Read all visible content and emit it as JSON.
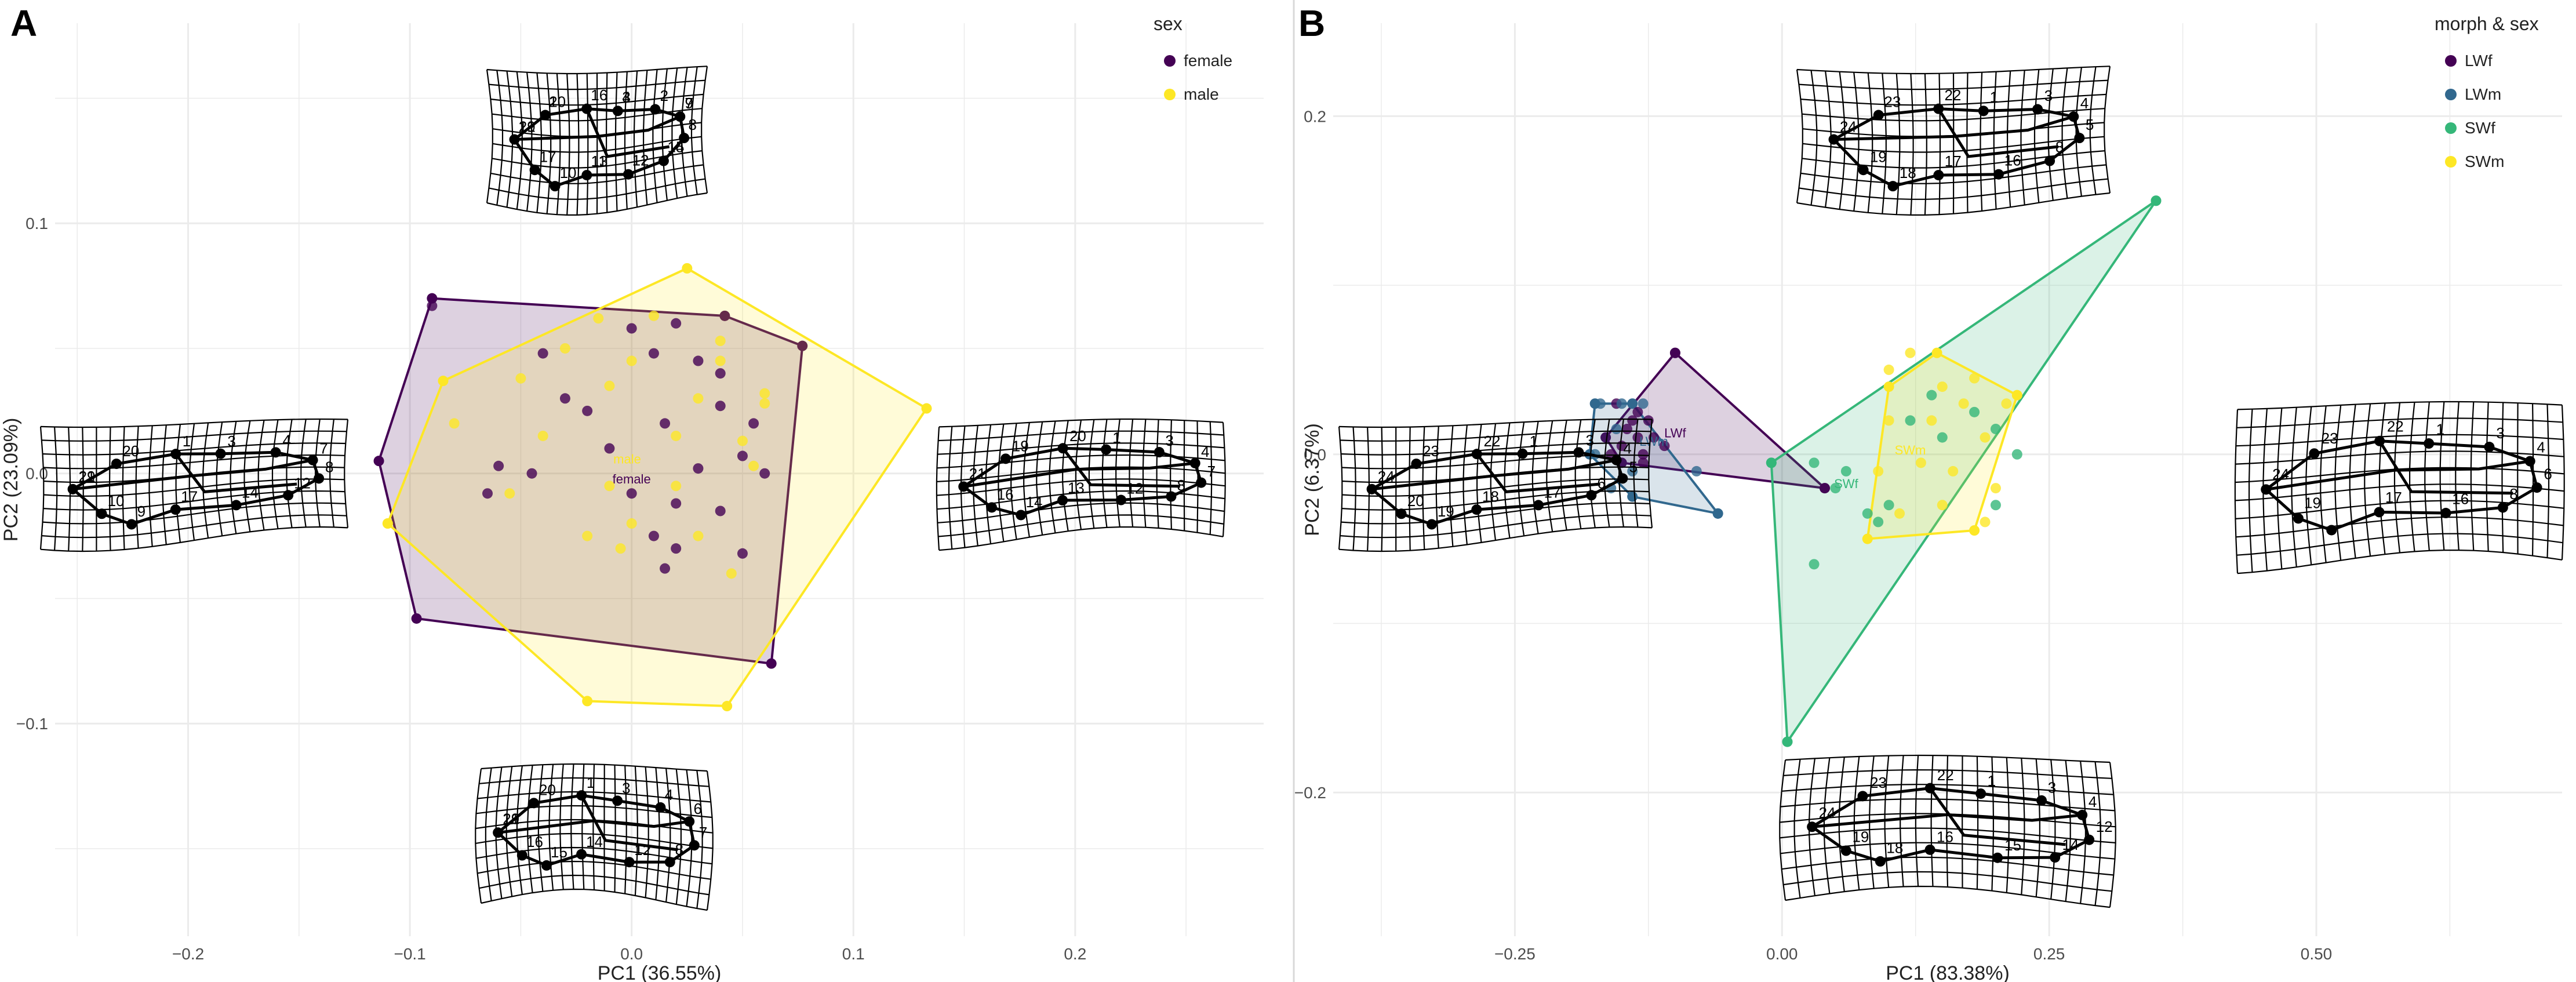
{
  "chart_data": [
    {
      "panel": "A",
      "type": "scatter",
      "xlabel": "PC1 (36.55%)",
      "ylabel": "PC2 (23.09%)",
      "xlim": [
        -0.26,
        0.285
      ],
      "ylim": [
        -0.185,
        0.18
      ],
      "xticks": [
        -0.2,
        -0.1,
        0.0,
        0.1,
        0.2
      ],
      "xtick_labels": [
        "−0.2",
        "−0.1",
        "0.0",
        "0.1",
        "0.2"
      ],
      "yticks": [
        -0.1,
        0.0,
        0.1
      ],
      "ytick_labels": [
        "−0.1",
        "0.0",
        "0.1"
      ],
      "grid": true,
      "legend": {
        "title": "sex",
        "position": "top-right"
      },
      "series": [
        {
          "name": "female",
          "color": "#440154",
          "points": [
            [
              -0.09,
              0.067
            ],
            [
              -0.06,
              0.003
            ],
            [
              -0.065,
              -0.008
            ],
            [
              -0.04,
              0.048
            ],
            [
              -0.03,
              0.03
            ],
            [
              -0.02,
              0.025
            ],
            [
              -0.01,
              0.01
            ],
            [
              0.0,
              0.058
            ],
            [
              0.01,
              0.048
            ],
            [
              0.02,
              0.06
            ],
            [
              0.03,
              0.045
            ],
            [
              0.04,
              0.027
            ],
            [
              0.05,
              0.007
            ],
            [
              0.055,
              0.02
            ],
            [
              0.02,
              -0.012
            ],
            [
              0.04,
              -0.015
            ],
            [
              0.02,
              -0.03
            ],
            [
              0.015,
              -0.038
            ],
            [
              0.05,
              -0.032
            ],
            [
              0.04,
              0.04
            ],
            [
              0.01,
              -0.025
            ],
            [
              0.06,
              -0.0
            ],
            [
              0.0,
              -0.008
            ],
            [
              0.03,
              0.002
            ],
            [
              -0.045,
              0.0
            ],
            [
              0.015,
              0.02
            ]
          ],
          "hull": [
            [
              -0.09,
              0.07
            ],
            [
              0.042,
              0.063
            ],
            [
              0.077,
              0.051
            ],
            [
              0.063,
              -0.076
            ],
            [
              -0.097,
              -0.058
            ],
            [
              -0.114,
              0.005
            ]
          ],
          "label": "female",
          "label_at": [
            0.0,
            -0.004
          ]
        },
        {
          "name": "male",
          "color": "#FDE725",
          "points": [
            [
              -0.11,
              -0.02
            ],
            [
              -0.08,
              0.02
            ],
            [
              -0.055,
              -0.008
            ],
            [
              -0.05,
              0.038
            ],
            [
              -0.04,
              0.015
            ],
            [
              -0.03,
              0.05
            ],
            [
              -0.02,
              -0.025
            ],
            [
              -0.01,
              0.035
            ],
            [
              0.0,
              -0.02
            ],
            [
              -0.015,
              0.062
            ],
            [
              0.01,
              0.063
            ],
            [
              0.02,
              0.015
            ],
            [
              0.04,
              0.053
            ],
            [
              0.04,
              0.045
            ],
            [
              0.05,
              0.013
            ],
            [
              0.06,
              0.028
            ],
            [
              0.055,
              0.003
            ],
            [
              0.0,
              0.045
            ],
            [
              0.02,
              -0.005
            ],
            [
              -0.01,
              -0.005
            ],
            [
              0.03,
              -0.025
            ],
            [
              0.045,
              -0.04
            ],
            [
              0.06,
              0.032
            ],
            [
              0.03,
              0.03
            ],
            [
              -0.005,
              -0.03
            ]
          ],
          "hull": [
            [
              -0.085,
              0.037
            ],
            [
              0.025,
              0.082
            ],
            [
              0.133,
              0.026
            ],
            [
              0.043,
              -0.093
            ],
            [
              -0.02,
              -0.091
            ],
            [
              -0.11,
              -0.02
            ]
          ],
          "label": "male",
          "label_at": [
            -0.002,
            0.004
          ]
        }
      ],
      "deformation_grids": [
        {
          "position": "top",
          "lm_labels": [
            "21",
            "19",
            "20",
            "1",
            "16",
            "3",
            "4",
            "2",
            "7",
            "9",
            "8",
            "14",
            "15",
            "12",
            "13",
            "11",
            "10",
            "17"
          ]
        },
        {
          "position": "left",
          "lm_labels": [
            "21",
            "19",
            "20",
            "1",
            "3",
            "4",
            "7",
            "8",
            "12",
            "14",
            "17",
            "9",
            "10"
          ]
        },
        {
          "position": "right",
          "lm_labels": [
            "21",
            "19",
            "20",
            "1",
            "3",
            "4",
            "7",
            "8",
            "12",
            "13",
            "14",
            "16"
          ]
        },
        {
          "position": "bottom",
          "lm_labels": [
            "21",
            "19",
            "20",
            "1",
            "3",
            "4",
            "6",
            "7",
            "8",
            "12",
            "14",
            "15",
            "16"
          ]
        }
      ]
    },
    {
      "panel": "B",
      "type": "scatter",
      "xlabel": "PC1 (83.38%)",
      "ylabel": "PC2 (6.37%)",
      "xlim": [
        -0.42,
        0.73
      ],
      "ylim": [
        -0.285,
        0.255
      ],
      "xticks": [
        -0.25,
        0.0,
        0.25,
        0.5
      ],
      "xtick_labels": [
        "−0.25",
        "0.00",
        "0.25",
        "0.50"
      ],
      "yticks": [
        -0.2,
        0.0,
        0.2
      ],
      "ytick_labels": [
        "−0.2",
        "0.0",
        "0.2"
      ],
      "grid": true,
      "legend": {
        "title": "morph & sex",
        "position": "top-right"
      },
      "series": [
        {
          "name": "LWf",
          "color": "#440154",
          "points": [
            [
              -0.1,
              0.06
            ],
            [
              -0.135,
              0.01
            ],
            [
              -0.15,
              0.005
            ],
            [
              -0.13,
              -0.005
            ],
            [
              -0.12,
              0.01
            ],
            [
              -0.14,
              0.02
            ],
            [
              -0.16,
              0.0
            ],
            [
              -0.125,
              0.02
            ],
            [
              -0.145,
              0.015
            ],
            [
              -0.13,
              0.0
            ],
            [
              -0.11,
              0.005
            ],
            [
              0.04,
              -0.02
            ],
            [
              -0.155,
              0.03
            ],
            [
              -0.135,
              0.025
            ]
          ],
          "hull": [
            [
              -0.1,
              0.06
            ],
            [
              0.04,
              -0.02
            ],
            [
              -0.15,
              -0.005
            ],
            [
              -0.165,
              0.01
            ]
          ],
          "label": "LWf",
          "label_at": [
            -0.1,
            0.01
          ]
        },
        {
          "name": "LWm",
          "color": "#31688E",
          "points": [
            [
              -0.17,
              0.03
            ],
            [
              -0.175,
              0.0
            ],
            [
              -0.16,
              -0.02
            ],
            [
              -0.15,
              0.03
            ],
            [
              -0.14,
              -0.01
            ],
            [
              -0.06,
              -0.035
            ],
            [
              -0.08,
              -0.01
            ],
            [
              -0.13,
              0.03
            ],
            [
              -0.155,
              0.015
            ]
          ],
          "hull": [
            [
              -0.175,
              0.03
            ],
            [
              -0.14,
              0.03
            ],
            [
              -0.06,
              -0.035
            ],
            [
              -0.14,
              -0.025
            ],
            [
              -0.18,
              0.0
            ]
          ],
          "label": "LWm",
          "label_at": [
            -0.12,
            0.005
          ]
        },
        {
          "name": "SWf",
          "color": "#35B779",
          "points": [
            [
              0.35,
              0.15
            ],
            [
              0.005,
              -0.17
            ],
            [
              -0.01,
              -0.005
            ],
            [
              0.03,
              -0.005
            ],
            [
              0.05,
              -0.02
            ],
            [
              0.08,
              -0.035
            ],
            [
              0.1,
              -0.03
            ],
            [
              0.12,
              0.02
            ],
            [
              0.15,
              0.01
            ],
            [
              0.2,
              0.015
            ],
            [
              0.22,
              0.0
            ],
            [
              0.18,
              0.025
            ],
            [
              0.06,
              -0.01
            ],
            [
              0.03,
              -0.065
            ],
            [
              0.09,
              -0.04
            ],
            [
              0.2,
              -0.03
            ],
            [
              0.14,
              0.035
            ]
          ],
          "hull": [
            [
              0.35,
              0.15
            ],
            [
              0.005,
              -0.17
            ],
            [
              -0.01,
              -0.005
            ]
          ],
          "label": "SWf",
          "label_at": [
            0.06,
            -0.02
          ]
        },
        {
          "name": "SWm",
          "color": "#FDE725",
          "points": [
            [
              0.1,
              0.05
            ],
            [
              0.12,
              0.06
            ],
            [
              0.14,
              0.02
            ],
            [
              0.15,
              0.04
            ],
            [
              0.16,
              -0.01
            ],
            [
              0.17,
              0.03
            ],
            [
              0.18,
              0.045
            ],
            [
              0.13,
              -0.005
            ],
            [
              0.15,
              -0.03
            ],
            [
              0.19,
              -0.04
            ],
            [
              0.2,
              -0.02
            ],
            [
              0.21,
              0.03
            ],
            [
              0.09,
              -0.01
            ],
            [
              0.1,
              0.02
            ],
            [
              0.11,
              -0.035
            ],
            [
              0.19,
              0.01
            ]
          ],
          "hull": [
            [
              0.1,
              0.04
            ],
            [
              0.145,
              0.06
            ],
            [
              0.22,
              0.035
            ],
            [
              0.18,
              -0.045
            ],
            [
              0.08,
              -0.05
            ]
          ],
          "label": "SWm",
          "label_at": [
            0.12,
            0.0
          ]
        }
      ],
      "deformation_grids": [
        {
          "position": "top",
          "lm_labels": [
            "24",
            "23",
            "22",
            "1",
            "3",
            "4",
            "5",
            "8",
            "16",
            "17",
            "18",
            "19"
          ]
        },
        {
          "position": "left",
          "lm_labels": [
            "24",
            "23",
            "22",
            "1",
            "3",
            "4",
            "5",
            "6",
            "17",
            "18",
            "19",
            "20"
          ]
        },
        {
          "position": "right",
          "lm_labels": [
            "24",
            "23",
            "22",
            "1",
            "3",
            "4",
            "6",
            "8",
            "16",
            "17",
            "19"
          ]
        },
        {
          "position": "bottom",
          "lm_labels": [
            "24",
            "23",
            "22",
            "1",
            "3",
            "4",
            "12",
            "14",
            "15",
            "16",
            "18",
            "19"
          ]
        }
      ]
    }
  ]
}
